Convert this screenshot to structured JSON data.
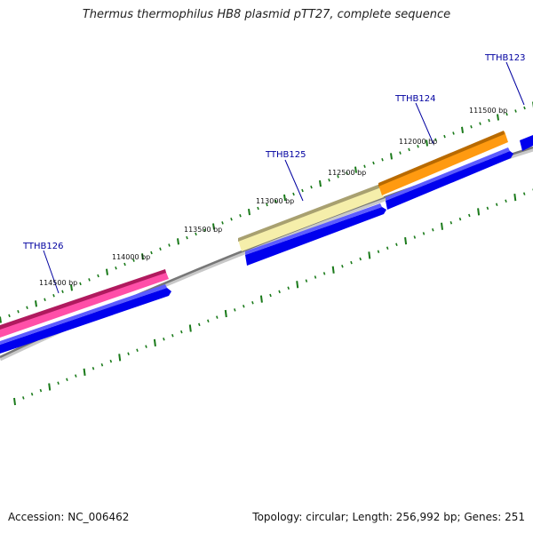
{
  "header": {
    "title": "Thermus thermophilus HB8 plasmid pTT27, complete sequence"
  },
  "footer": {
    "accession": "Accession: NC_006462",
    "summary": "Topology: circular; Length: 256,992 bp; Genes: 251"
  },
  "ruler": {
    "labels": [
      "114500 bp",
      "114000 bp",
      "113500 bp",
      "113000 bp",
      "112500 bp",
      "112000 bp",
      "111500 bp"
    ]
  },
  "genes": [
    {
      "name": "TTHB126",
      "color": "#e8207a"
    },
    {
      "name": "TTHB125",
      "color": "#f2e8a0"
    },
    {
      "name": "TTHB124",
      "color": "#ff8c00"
    },
    {
      "name": "TTHB123",
      "color": "#0000ee"
    }
  ],
  "colors": {
    "cds": "#0000ee",
    "backbone": "#888888",
    "tick": "#1a7a1a",
    "label": "#0000a0"
  }
}
